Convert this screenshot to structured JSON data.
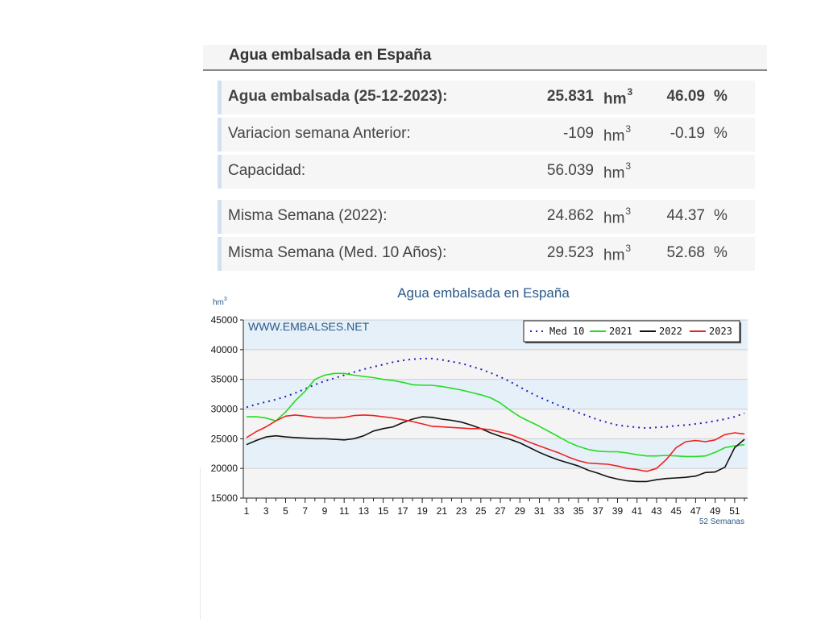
{
  "header": {
    "title": "Agua embalsada en España"
  },
  "summary": {
    "rows": [
      {
        "label": "Agua embalsada (25-12-2023):",
        "value": "25.831",
        "unit": "hm",
        "unit_sup": "3",
        "pct": "46.09",
        "pct_sign": "%"
      },
      {
        "label": "Variacion semana Anterior:",
        "value": "-109",
        "unit": "hm",
        "unit_sup": "3",
        "pct": "-0.19",
        "pct_sign": "%"
      },
      {
        "label": "Capacidad:",
        "value": "56.039",
        "unit": "hm",
        "unit_sup": "3",
        "pct": "",
        "pct_sign": ""
      },
      {
        "label": "Misma Semana (2022):",
        "value": "24.862",
        "unit": "hm",
        "unit_sup": "3",
        "pct": "44.37",
        "pct_sign": "%"
      },
      {
        "label": "Misma Semana (Med. 10 Años):",
        "value": "29.523",
        "unit": "hm",
        "unit_sup": "3",
        "pct": "52.68",
        "pct_sign": "%"
      }
    ]
  },
  "chart_data": {
    "type": "line",
    "title": "Agua embalsada en España",
    "ylabel": "hm",
    "ylabel_sup": "3",
    "xlabel": "52 Semanas",
    "watermark": "WWW.EMBALSES.NET",
    "ylim": [
      15000,
      45000
    ],
    "yticks": [
      15000,
      20000,
      25000,
      30000,
      35000,
      40000,
      45000
    ],
    "xlim": [
      1,
      52
    ],
    "xticks": [
      1,
      3,
      5,
      7,
      9,
      11,
      13,
      15,
      17,
      19,
      21,
      23,
      25,
      27,
      29,
      31,
      33,
      35,
      37,
      39,
      41,
      43,
      45,
      47,
      49,
      51
    ],
    "grid": true,
    "legend_position": "top-right",
    "colors": {
      "Med 10": "#2020c0",
      "2021": "#22dd22",
      "2022": "#111111",
      "2023": "#ee2222",
      "band_light": "#e6f0f8",
      "plot_bg": "#f4f4f4"
    },
    "series": [
      {
        "name": "Med 10",
        "style": "dotted",
        "values": [
          30300,
          30800,
          31200,
          31600,
          32100,
          32700,
          33400,
          34100,
          34700,
          35200,
          35700,
          36200,
          36700,
          37100,
          37500,
          37900,
          38200,
          38400,
          38500,
          38500,
          38300,
          38000,
          37700,
          37200,
          36700,
          36100,
          35400,
          34600,
          33700,
          32800,
          32000,
          31300,
          30600,
          30000,
          29400,
          28800,
          28200,
          27700,
          27300,
          27100,
          26900,
          26800,
          26900,
          27000,
          27200,
          27300,
          27500,
          27700,
          28000,
          28300,
          28700,
          29300
        ]
      },
      {
        "name": "2021",
        "style": "solid",
        "values": [
          28700,
          28700,
          28500,
          28000,
          29500,
          31400,
          33000,
          35000,
          35700,
          36000,
          36000,
          35700,
          35500,
          35300,
          35000,
          34800,
          34500,
          34100,
          34000,
          34000,
          33800,
          33500,
          33200,
          32800,
          32400,
          31900,
          31000,
          29800,
          28700,
          27900,
          27100,
          26200,
          25300,
          24400,
          23700,
          23200,
          22900,
          22800,
          22800,
          22600,
          22300,
          22100,
          22100,
          22200,
          22100,
          22000,
          22000,
          22100,
          22700,
          23500,
          23800,
          24000
        ]
      },
      {
        "name": "2022",
        "style": "solid",
        "values": [
          24000,
          24700,
          25300,
          25500,
          25300,
          25200,
          25100,
          25000,
          25000,
          24900,
          24800,
          25000,
          25500,
          26300,
          26700,
          27000,
          27700,
          28300,
          28700,
          28600,
          28300,
          28100,
          27800,
          27300,
          26700,
          26000,
          25400,
          24900,
          24300,
          23500,
          22700,
          22000,
          21400,
          20900,
          20400,
          19700,
          19200,
          18600,
          18200,
          17900,
          17800,
          17800,
          18100,
          18300,
          18400,
          18500,
          18700,
          19300,
          19400,
          20200,
          23500,
          24900
        ]
      },
      {
        "name": "2023",
        "style": "solid",
        "values": [
          25200,
          26200,
          27000,
          28000,
          28800,
          29000,
          28800,
          28600,
          28500,
          28500,
          28600,
          28900,
          29000,
          28900,
          28700,
          28500,
          28200,
          27900,
          27500,
          27100,
          27000,
          26900,
          26800,
          26700,
          26700,
          26500,
          26100,
          25700,
          25100,
          24400,
          23800,
          23200,
          22600,
          21900,
          21300,
          20900,
          20800,
          20700,
          20400,
          20000,
          19800,
          19500,
          20000,
          21500,
          23500,
          24500,
          24700,
          24500,
          24800,
          25700,
          26000,
          25800
        ]
      }
    ]
  }
}
